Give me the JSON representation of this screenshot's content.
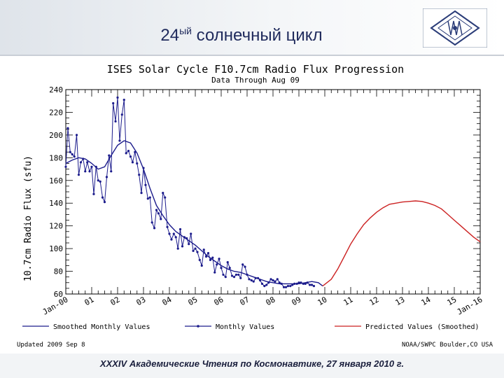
{
  "slide": {
    "title_main": "24",
    "title_sup": "ый",
    "title_rest": " солнечный цикл",
    "footer": "XXXIV Академические Чтения по Космонавтике,  27 января 2010 г."
  },
  "colors": {
    "observed": "#1c1c8c",
    "predicted": "#cc2222",
    "grid": "#000000"
  },
  "chart_data": {
    "type": "line",
    "title": "ISES Solar Cycle F10.7cm Radio Flux Progression",
    "subtitle": "Data Through Aug 09",
    "ylabel": "10.7cm Radio Flux (sfu)",
    "ylim": [
      60,
      240
    ],
    "yticks": [
      60,
      80,
      100,
      120,
      140,
      160,
      180,
      200,
      220,
      240
    ],
    "xlim": [
      2000,
      2016
    ],
    "xtick_labels": [
      {
        "x": 2000,
        "label": "Jan-00"
      },
      {
        "x": 2001,
        "label": "01"
      },
      {
        "x": 2002,
        "label": "02"
      },
      {
        "x": 2003,
        "label": "03"
      },
      {
        "x": 2004,
        "label": "04"
      },
      {
        "x": 2005,
        "label": "05"
      },
      {
        "x": 2006,
        "label": "06"
      },
      {
        "x": 2007,
        "label": "07"
      },
      {
        "x": 2008,
        "label": "08"
      },
      {
        "x": 2009,
        "label": "09"
      },
      {
        "x": 2010,
        "label": "10"
      },
      {
        "x": 2011,
        "label": "11"
      },
      {
        "x": 2012,
        "label": "12"
      },
      {
        "x": 2013,
        "label": "13"
      },
      {
        "x": 2014,
        "label": "14"
      },
      {
        "x": 2015,
        "label": "15"
      },
      {
        "x": 2016,
        "label": "Jan-16"
      }
    ],
    "legend": [
      {
        "label": "Smoothed Monthly Values",
        "style": "line",
        "color": "#1c1c8c"
      },
      {
        "label": "Monthly Values",
        "style": "line-dot",
        "color": "#1c1c8c"
      },
      {
        "label": "Predicted Values (Smoothed)",
        "style": "line",
        "color": "#cc2222"
      }
    ],
    "updated": "Updated 2009 Sep  8",
    "source": "NOAA/SWPC Boulder,CO USA",
    "series": [
      {
        "name": "Monthly Values",
        "style": "line-dot",
        "points": [
          [
            2000.0,
            172
          ],
          [
            2000.08,
            206
          ],
          [
            2000.17,
            185
          ],
          [
            2000.25,
            183
          ],
          [
            2000.33,
            181
          ],
          [
            2000.42,
            200
          ],
          [
            2000.5,
            165
          ],
          [
            2000.58,
            176
          ],
          [
            2000.67,
            179
          ],
          [
            2000.75,
            168
          ],
          [
            2000.83,
            176
          ],
          [
            2000.92,
            168
          ],
          [
            2001.0,
            172
          ],
          [
            2001.08,
            148
          ],
          [
            2001.17,
            172
          ],
          [
            2001.25,
            160
          ],
          [
            2001.33,
            159
          ],
          [
            2001.42,
            145
          ],
          [
            2001.5,
            141
          ],
          [
            2001.58,
            163
          ],
          [
            2001.67,
            182
          ],
          [
            2001.75,
            168
          ],
          [
            2001.83,
            228
          ],
          [
            2001.92,
            212
          ],
          [
            2002.0,
            233
          ],
          [
            2002.08,
            195
          ],
          [
            2002.17,
            218
          ],
          [
            2002.25,
            231
          ],
          [
            2002.33,
            184
          ],
          [
            2002.42,
            186
          ],
          [
            2002.5,
            181
          ],
          [
            2002.58,
            176
          ],
          [
            2002.67,
            185
          ],
          [
            2002.75,
            175
          ],
          [
            2002.83,
            165
          ],
          [
            2002.92,
            149
          ],
          [
            2003.0,
            171
          ],
          [
            2003.08,
            156
          ],
          [
            2003.17,
            144
          ],
          [
            2003.25,
            145
          ],
          [
            2003.33,
            123
          ],
          [
            2003.42,
            118
          ],
          [
            2003.5,
            134
          ],
          [
            2003.58,
            131
          ],
          [
            2003.67,
            126
          ],
          [
            2003.75,
            149
          ],
          [
            2003.83,
            145
          ],
          [
            2003.92,
            119
          ],
          [
            2004.0,
            113
          ],
          [
            2004.08,
            108
          ],
          [
            2004.17,
            113
          ],
          [
            2004.25,
            110
          ],
          [
            2004.33,
            100
          ],
          [
            2004.42,
            117
          ],
          [
            2004.5,
            102
          ],
          [
            2004.58,
            110
          ],
          [
            2004.67,
            109
          ],
          [
            2004.75,
            104
          ],
          [
            2004.83,
            113
          ],
          [
            2004.92,
            98
          ],
          [
            2005.0,
            100
          ],
          [
            2005.08,
            97
          ],
          [
            2005.17,
            90
          ],
          [
            2005.25,
            85
          ],
          [
            2005.33,
            99
          ],
          [
            2005.42,
            93
          ],
          [
            2005.5,
            96
          ],
          [
            2005.58,
            90
          ],
          [
            2005.67,
            92
          ],
          [
            2005.75,
            79
          ],
          [
            2005.83,
            86
          ],
          [
            2005.92,
            91
          ],
          [
            2006.0,
            83
          ],
          [
            2006.08,
            77
          ],
          [
            2006.17,
            75
          ],
          [
            2006.25,
            88
          ],
          [
            2006.33,
            83
          ],
          [
            2006.42,
            76
          ],
          [
            2006.5,
            75
          ],
          [
            2006.58,
            77
          ],
          [
            2006.67,
            77
          ],
          [
            2006.75,
            74
          ],
          [
            2006.83,
            86
          ],
          [
            2006.92,
            84
          ],
          [
            2007.0,
            77
          ],
          [
            2007.08,
            73
          ],
          [
            2007.17,
            72
          ],
          [
            2007.25,
            71
          ],
          [
            2007.33,
            74
          ],
          [
            2007.42,
            74
          ],
          [
            2007.5,
            72
          ],
          [
            2007.58,
            69
          ],
          [
            2007.67,
            67
          ],
          [
            2007.75,
            68
          ],
          [
            2007.83,
            70
          ],
          [
            2007.92,
            73
          ],
          [
            2008.0,
            72
          ],
          [
            2008.08,
            71
          ],
          [
            2008.17,
            73
          ],
          [
            2008.25,
            70
          ],
          [
            2008.33,
            69
          ],
          [
            2008.42,
            66
          ],
          [
            2008.5,
            66
          ],
          [
            2008.58,
            67
          ],
          [
            2008.67,
            67
          ],
          [
            2008.75,
            68
          ],
          [
            2008.83,
            69
          ],
          [
            2008.92,
            69
          ],
          [
            2009.0,
            70
          ],
          [
            2009.08,
            70
          ],
          [
            2009.17,
            69
          ],
          [
            2009.25,
            69
          ],
          [
            2009.33,
            70
          ],
          [
            2009.42,
            68
          ],
          [
            2009.5,
            68
          ],
          [
            2009.58,
            67
          ]
        ]
      },
      {
        "name": "Smoothed Monthly Values",
        "style": "line",
        "points": [
          [
            2000.0,
            175
          ],
          [
            2000.25,
            178
          ],
          [
            2000.5,
            180
          ],
          [
            2000.75,
            179
          ],
          [
            2001.0,
            175
          ],
          [
            2001.25,
            170
          ],
          [
            2001.5,
            172
          ],
          [
            2001.75,
            182
          ],
          [
            2002.0,
            191
          ],
          [
            2002.25,
            195
          ],
          [
            2002.5,
            193
          ],
          [
            2002.75,
            184
          ],
          [
            2003.0,
            170
          ],
          [
            2003.25,
            153
          ],
          [
            2003.5,
            138
          ],
          [
            2003.75,
            129
          ],
          [
            2004.0,
            121
          ],
          [
            2004.25,
            115
          ],
          [
            2004.5,
            111
          ],
          [
            2004.75,
            107
          ],
          [
            2005.0,
            103
          ],
          [
            2005.25,
            98
          ],
          [
            2005.5,
            93
          ],
          [
            2005.75,
            89
          ],
          [
            2006.0,
            85
          ],
          [
            2006.25,
            82
          ],
          [
            2006.5,
            80
          ],
          [
            2006.75,
            79
          ],
          [
            2007.0,
            77
          ],
          [
            2007.25,
            75
          ],
          [
            2007.5,
            73
          ],
          [
            2007.75,
            71
          ],
          [
            2008.0,
            70
          ],
          [
            2008.25,
            69
          ],
          [
            2008.5,
            69
          ],
          [
            2008.75,
            69
          ],
          [
            2009.0,
            69
          ],
          [
            2009.25,
            70
          ],
          [
            2009.5,
            71
          ],
          [
            2009.75,
            70
          ],
          [
            2009.92,
            67
          ]
        ]
      },
      {
        "name": "Predicted Values (Smoothed)",
        "style": "line",
        "points": [
          [
            2009.92,
            67
          ],
          [
            2010.25,
            73
          ],
          [
            2010.5,
            82
          ],
          [
            2010.75,
            93
          ],
          [
            2011.0,
            104
          ],
          [
            2011.25,
            113
          ],
          [
            2011.5,
            121
          ],
          [
            2011.75,
            127
          ],
          [
            2012.0,
            132
          ],
          [
            2012.25,
            136
          ],
          [
            2012.5,
            139
          ],
          [
            2012.75,
            140
          ],
          [
            2013.0,
            141
          ],
          [
            2013.25,
            141.5
          ],
          [
            2013.5,
            142
          ],
          [
            2013.75,
            141.5
          ],
          [
            2014.0,
            140
          ],
          [
            2014.25,
            138
          ],
          [
            2014.5,
            135
          ],
          [
            2014.75,
            130
          ],
          [
            2015.0,
            125
          ],
          [
            2015.25,
            120
          ],
          [
            2015.5,
            115
          ],
          [
            2015.75,
            110
          ],
          [
            2016.0,
            106
          ]
        ]
      }
    ]
  }
}
